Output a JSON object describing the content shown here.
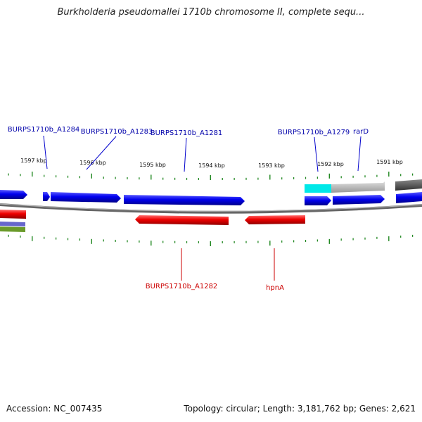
{
  "title": "Burkholderia pseudomallei 1710b chromosome II, complete sequ...",
  "footer": {
    "accession": "Accession: NC_007435",
    "summary": "Topology: circular; Length: 3,181,762 bp; Genes: 2,621"
  },
  "ruler": [
    "1597 kbp",
    "1596 kbp",
    "1595 kbp",
    "1594 kbp",
    "1593 kbp",
    "1592 kbp",
    "1591 kbp"
  ],
  "genes_top": [
    "BURPS1710b_A1284",
    "BURPS1710b_A1283",
    "BURPS1710b_A1281",
    "BURPS1710b_A1279",
    "rarD"
  ],
  "genes_bottom": [
    "BURPS1710b_A1282",
    "hpnA"
  ],
  "colors": {
    "forward_gene": "#0000ee",
    "reverse_gene": "#ee0000",
    "tick": "#228822",
    "backbone": "#777777",
    "highlight": "#00e8e8",
    "partial": "#bbbbbb"
  }
}
